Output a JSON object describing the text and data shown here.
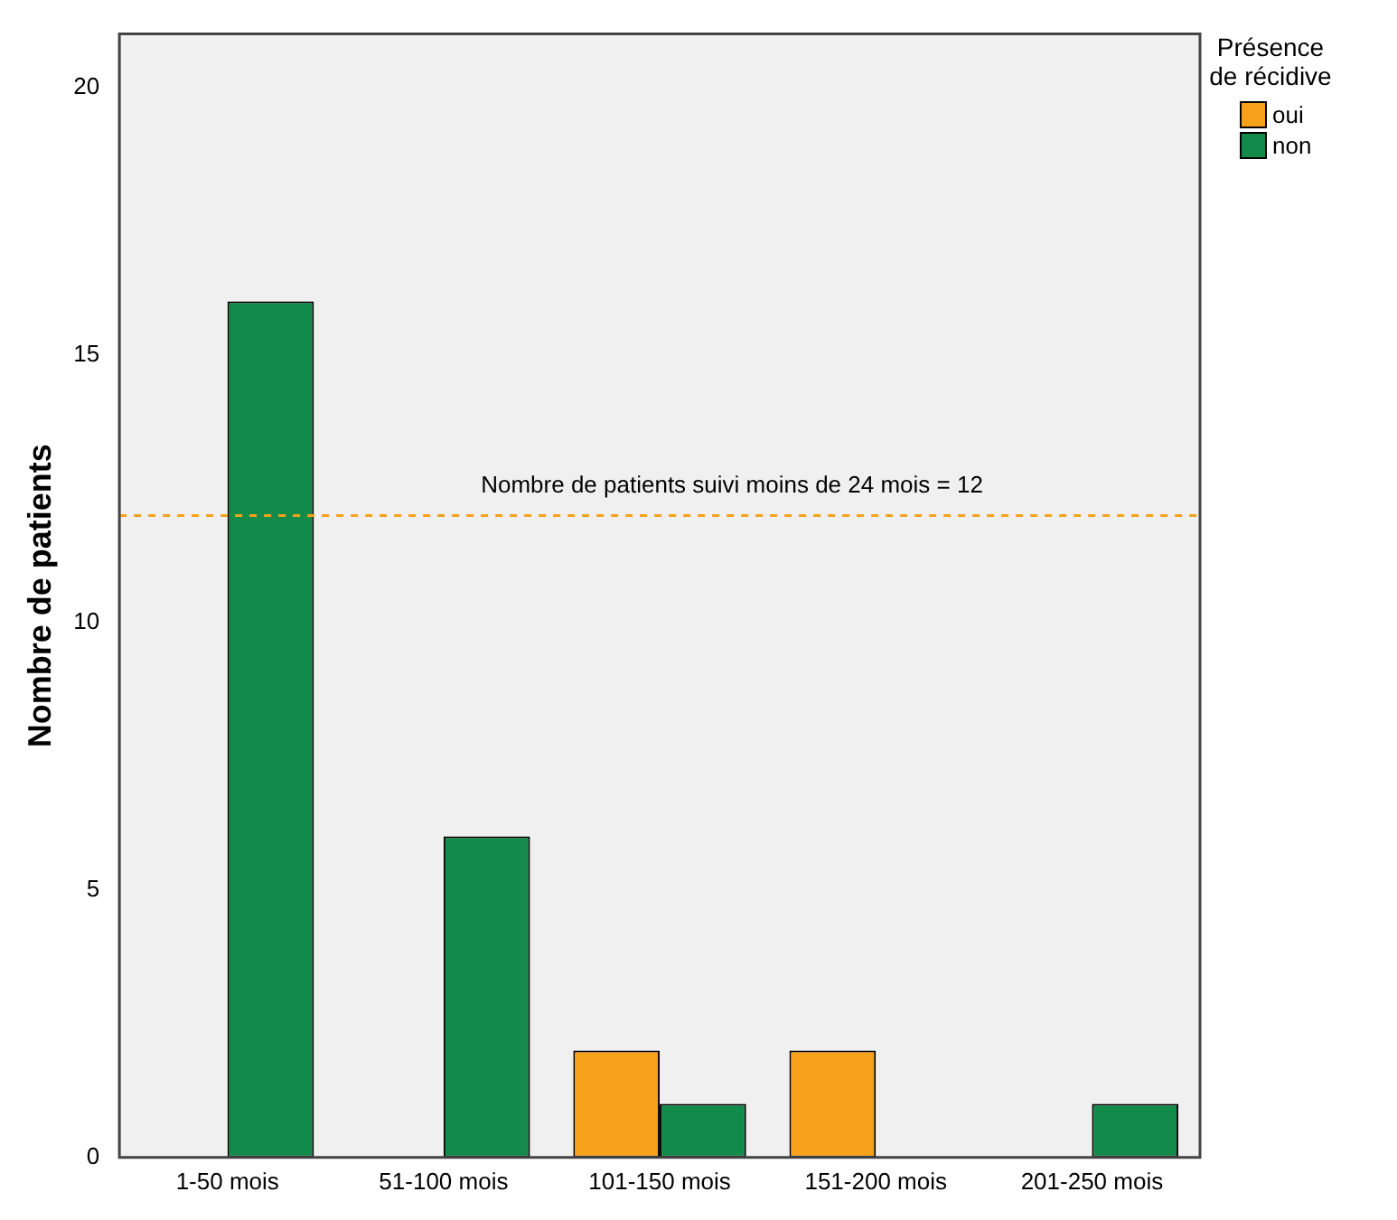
{
  "chart_data": {
    "type": "bar",
    "ylabel": "Nombre de patients",
    "legend_title": "Présence de récidive",
    "legend": "top right",
    "grid": false,
    "categories": [
      "1-50 mois",
      "51-100 mois",
      "101-150 mois",
      "151-200 mois",
      "201-250 mois"
    ],
    "series": [
      {
        "name": "oui",
        "color": "#f7a11a",
        "values": [
          0,
          0,
          2,
          2,
          0
        ]
      },
      {
        "name": "non",
        "color": "#128a4a",
        "values": [
          16,
          6,
          1,
          0,
          1
        ]
      }
    ],
    "ylim": [
      0,
      21
    ],
    "yticks": [
      0,
      5,
      10,
      15,
      20
    ],
    "ref_lines": [
      {
        "axis": "y",
        "value": 12,
        "label": "Nombre de patients suivi moins de 24 mois = 12",
        "color": "#f7a11a",
        "line_style": "dashed"
      }
    ]
  }
}
